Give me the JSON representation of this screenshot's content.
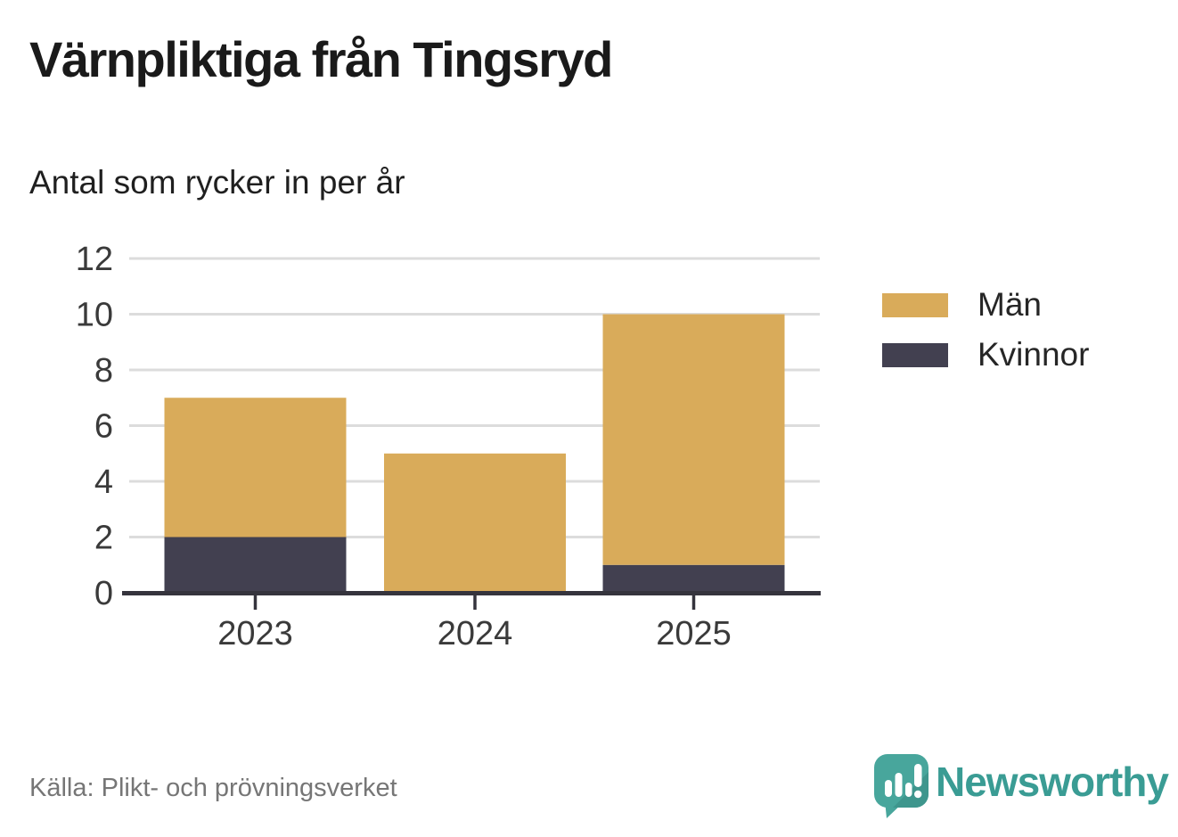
{
  "header": {
    "title": "Värnpliktiga från Tingsryd",
    "subtitle": "Antal som rycker in per år"
  },
  "chart_data": {
    "type": "bar",
    "stacked": true,
    "title": "Värnpliktiga från Tingsryd",
    "subtitle": "Antal som rycker in per år",
    "categories": [
      "2023",
      "2024",
      "2025"
    ],
    "series": [
      {
        "name": "Män",
        "key": "man",
        "color": "#D9AB5A",
        "values": [
          5,
          5,
          9
        ]
      },
      {
        "name": "Kvinnor",
        "key": "kvinnor",
        "color": "#424050",
        "values": [
          2,
          0,
          1
        ]
      }
    ],
    "stack_totals": [
      7,
      5,
      10
    ],
    "ylim": [
      0,
      12
    ],
    "yticks": [
      0,
      2,
      4,
      6,
      8,
      10,
      12
    ],
    "grid": true,
    "legend_position": "right",
    "xlabel": "",
    "ylabel": ""
  },
  "footer": {
    "source": "Källa: Plikt- och prövningsverket"
  },
  "branding": {
    "name": "Newsworthy"
  },
  "colors": {
    "bar_man": "#D9AB5A",
    "bar_kvinnor": "#424050",
    "grid": "#DCDCDC",
    "axis": "#35343D",
    "tick_label": "#3A3A3A",
    "title": "#1A1A1A",
    "source": "#767676",
    "brand_teal": "#3A9C94",
    "brand_icon_teal": "#48A69C",
    "brand_icon_shade": "#3E968D",
    "logo_glyph": "#FFFFFF"
  }
}
